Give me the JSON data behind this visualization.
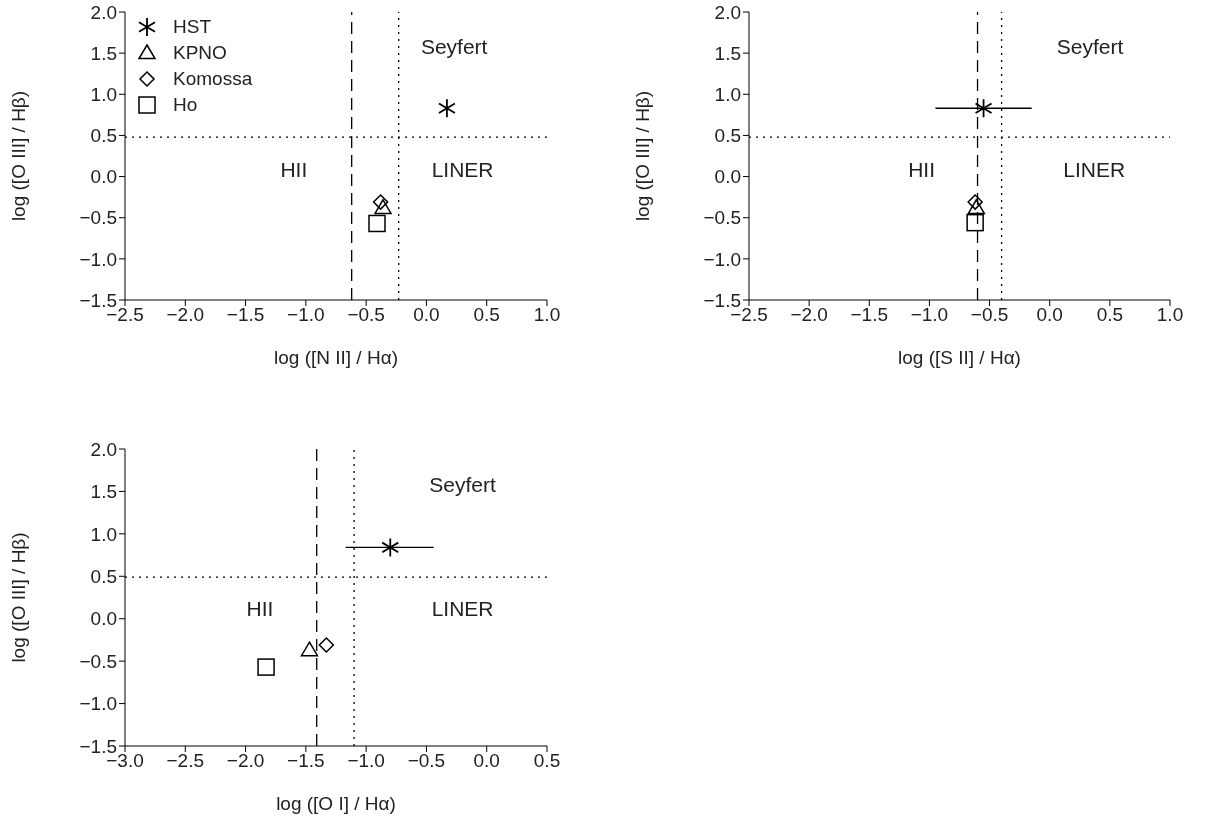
{
  "chart_data": [
    {
      "type": "scatter",
      "xlabel": "log ([N II] / Hα)",
      "ylabel": "log ([O III] / Hβ)",
      "xlim": [
        -2.5,
        1.0
      ],
      "ylim": [
        -1.5,
        2.0
      ],
      "xticks": [
        {
          "value": -2.5,
          "label": "−2.5"
        },
        {
          "value": -2,
          "label": "−2.0"
        },
        {
          "value": -1.5,
          "label": "−1.5"
        },
        {
          "value": -1,
          "label": "−1.0"
        },
        {
          "value": -0.5,
          "label": "−0.5"
        },
        {
          "value": 0,
          "label": "0.0"
        },
        {
          "value": 0.5,
          "label": "0.5"
        },
        {
          "value": 1,
          "label": "1.0"
        }
      ],
      "yticks": [
        {
          "value": -1.5,
          "label": "−1.5"
        },
        {
          "value": -1,
          "label": "−1.0"
        },
        {
          "value": -0.5,
          "label": "−0.5"
        },
        {
          "value": 0,
          "label": "0.0"
        },
        {
          "value": 0.5,
          "label": "0.5"
        },
        {
          "value": 1,
          "label": "1.0"
        },
        {
          "value": 1.5,
          "label": "1.5"
        },
        {
          "value": 2,
          "label": "2.0"
        }
      ],
      "legend": "top left",
      "annotations": [
        "Seyfert",
        "HII",
        "LINER"
      ],
      "ref_lines": [
        {
          "axis": "x",
          "value": -0.62,
          "line_style": "dashed",
          "color": "#000000"
        },
        {
          "axis": "x",
          "value": -0.23,
          "line_style": "dotted",
          "color": "#000000"
        },
        {
          "axis": "y",
          "value": 0.48,
          "line_style": "dotted",
          "color": "#000000"
        }
      ],
      "series": [
        {
          "name": "HST",
          "color": "#000000",
          "marker": "cross",
          "x": [
            0.17
          ],
          "values": [
            0.83
          ]
        },
        {
          "name": "KPNO",
          "color": "#000000",
          "marker": "triangle",
          "x": [
            -0.36
          ],
          "values": [
            -0.38
          ]
        },
        {
          "name": "Komossa",
          "color": "#000000",
          "marker": "diamond",
          "x": [
            -0.38
          ],
          "values": [
            -0.31
          ]
        },
        {
          "name": "Ho",
          "color": "#000000",
          "marker": "square",
          "x": [
            -0.41
          ],
          "values": [
            -0.57
          ]
        }
      ]
    },
    {
      "type": "scatter",
      "xlabel": "log ([S II] / Hα)",
      "ylabel": "log ([O III] / Hβ)",
      "xlim": [
        -2.5,
        1.0
      ],
      "ylim": [
        -1.5,
        2.0
      ],
      "xticks": [
        {
          "value": -2.5,
          "label": "−2.5"
        },
        {
          "value": -2,
          "label": "−2.0"
        },
        {
          "value": -1.5,
          "label": "−1.5"
        },
        {
          "value": -1,
          "label": "−1.0"
        },
        {
          "value": -0.5,
          "label": "−0.5"
        },
        {
          "value": 0,
          "label": "0.0"
        },
        {
          "value": 0.5,
          "label": "0.5"
        },
        {
          "value": 1,
          "label": "1.0"
        }
      ],
      "yticks": [
        {
          "value": -1.5,
          "label": "−1.5"
        },
        {
          "value": -1,
          "label": "−1.0"
        },
        {
          "value": -0.5,
          "label": "−0.5"
        },
        {
          "value": 0,
          "label": "0.0"
        },
        {
          "value": 0.5,
          "label": "0.5"
        },
        {
          "value": 1,
          "label": "1.0"
        },
        {
          "value": 1.5,
          "label": "1.5"
        },
        {
          "value": 2,
          "label": "2.0"
        }
      ],
      "annotations": [
        "Seyfert",
        "HII",
        "LINER"
      ],
      "ref_lines": [
        {
          "axis": "x",
          "value": -0.6,
          "line_style": "dashed",
          "color": "#000000"
        },
        {
          "axis": "x",
          "value": -0.4,
          "line_style": "dotted",
          "color": "#000000"
        },
        {
          "axis": "y",
          "value": 0.48,
          "line_style": "dotted",
          "color": "#000000"
        }
      ],
      "series": [
        {
          "color": "#000000",
          "marker": "cross",
          "x": [
            -0.55
          ],
          "values": [
            0.83
          ],
          "xerrors": [
            [
              -0.95,
              -0.15
            ]
          ]
        },
        {
          "color": "#000000",
          "marker": "triangle",
          "x": [
            -0.61
          ],
          "values": [
            -0.38
          ]
        },
        {
          "color": "#000000",
          "marker": "diamond",
          "x": [
            -0.62
          ],
          "values": [
            -0.31
          ]
        },
        {
          "color": "#000000",
          "marker": "square",
          "x": [
            -0.62
          ],
          "values": [
            -0.56
          ]
        }
      ]
    },
    {
      "type": "scatter",
      "xlabel": "log ([O I] / Hα)",
      "ylabel": "log ([O III] / Hβ)",
      "xlim": [
        -3.0,
        0.5
      ],
      "ylim": [
        -1.5,
        2.0
      ],
      "xticks": [
        {
          "value": -3,
          "label": "−3.0"
        },
        {
          "value": -2.5,
          "label": "−2.5"
        },
        {
          "value": -2,
          "label": "−2.0"
        },
        {
          "value": -1.5,
          "label": "−1.5"
        },
        {
          "value": -1,
          "label": "−1.0"
        },
        {
          "value": -0.5,
          "label": "−0.5"
        },
        {
          "value": 0,
          "label": "0.0"
        },
        {
          "value": 0.5,
          "label": "0.5"
        }
      ],
      "yticks": [
        {
          "value": -1.5,
          "label": "−1.5"
        },
        {
          "value": -1,
          "label": "−1.0"
        },
        {
          "value": -0.5,
          "label": "−0.5"
        },
        {
          "value": 0,
          "label": "0.0"
        },
        {
          "value": 0.5,
          "label": "0.5"
        },
        {
          "value": 1,
          "label": "1.0"
        },
        {
          "value": 1.5,
          "label": "1.5"
        },
        {
          "value": 2,
          "label": "2.0"
        }
      ],
      "annotations": [
        "Seyfert",
        "HII",
        "LINER"
      ],
      "ref_lines": [
        {
          "axis": "x",
          "value": -1.41,
          "line_style": "dashed",
          "color": "#000000"
        },
        {
          "axis": "x",
          "value": -1.1,
          "line_style": "dotted",
          "color": "#000000"
        },
        {
          "axis": "y",
          "value": 0.49,
          "line_style": "dotted",
          "color": "#000000"
        }
      ],
      "series": [
        {
          "color": "#000000",
          "marker": "cross",
          "x": [
            -0.8
          ],
          "values": [
            0.84
          ],
          "xerrors": [
            [
              -1.17,
              -0.44
            ]
          ]
        },
        {
          "color": "#000000",
          "marker": "triangle",
          "x": [
            -1.47
          ],
          "values": [
            -0.37
          ]
        },
        {
          "color": "#000000",
          "marker": "diamond",
          "x": [
            -1.33
          ],
          "values": [
            -0.31
          ]
        },
        {
          "color": "#000000",
          "marker": "square",
          "x": [
            -1.83
          ],
          "values": [
            -0.57
          ]
        }
      ]
    }
  ]
}
